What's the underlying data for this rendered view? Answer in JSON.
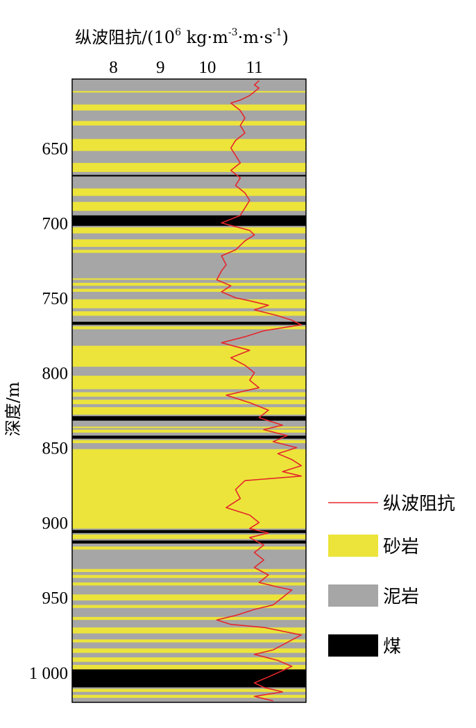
{
  "chart_data": {
    "type": "line",
    "title": "纵波阻抗/(10⁶ kg·m⁻³·m·s⁻¹)",
    "title_parts": {
      "main": "纵波阻抗/(10",
      "exp": "6",
      "units": " kg·m",
      "exp2": "-3",
      "units2": "·m·s",
      "exp3": "-1",
      "close": ")"
    },
    "ylabel": "深度/m",
    "x_ticks": [
      "8",
      "9",
      "10",
      "11"
    ],
    "x_tick_values": [
      8,
      9,
      10,
      11
    ],
    "y_ticks": [
      "650",
      "700",
      "750",
      "800",
      "850",
      "900",
      "950",
      "1 000"
    ],
    "y_tick_values": [
      650,
      700,
      750,
      800,
      850,
      900,
      950,
      1000
    ],
    "xlim": [
      7.12,
      12.1
    ],
    "ylim": [
      604,
      1020
    ],
    "y_inverted": true,
    "legend": {
      "position": "right",
      "items": [
        {
          "label": "纵波阻抗",
          "kind": "line",
          "color": "#e5262b"
        },
        {
          "label": "砂岩",
          "kind": "patch",
          "color": "#ece43a"
        },
        {
          "label": "泥岩",
          "kind": "patch",
          "color": "#a6a6a6"
        },
        {
          "label": "煤",
          "kind": "patch",
          "color": "#000000"
        }
      ]
    },
    "lithology_background": "泥岩",
    "lithology": [
      {
        "top": 612,
        "bottom": 613,
        "rock": "砂岩"
      },
      {
        "top": 621,
        "bottom": 625,
        "rock": "砂岩"
      },
      {
        "top": 632,
        "bottom": 635,
        "rock": "砂岩"
      },
      {
        "top": 644,
        "bottom": 652,
        "rock": "砂岩"
      },
      {
        "top": 660,
        "bottom": 666,
        "rock": "砂岩"
      },
      {
        "top": 668,
        "bottom": 669,
        "rock": "煤"
      },
      {
        "top": 677,
        "bottom": 682,
        "rock": "砂岩"
      },
      {
        "top": 686,
        "bottom": 692,
        "rock": "砂岩"
      },
      {
        "top": 695,
        "bottom": 702,
        "rock": "煤"
      },
      {
        "top": 703,
        "bottom": 707,
        "rock": "砂岩"
      },
      {
        "top": 711,
        "bottom": 716,
        "rock": "砂岩"
      },
      {
        "top": 718,
        "bottom": 720,
        "rock": "砂岩"
      },
      {
        "top": 737,
        "bottom": 738,
        "rock": "砂岩"
      },
      {
        "top": 740,
        "bottom": 742,
        "rock": "砂岩"
      },
      {
        "top": 744,
        "bottom": 746,
        "rock": "砂岩"
      },
      {
        "top": 751,
        "bottom": 757,
        "rock": "砂岩"
      },
      {
        "top": 759,
        "bottom": 762,
        "rock": "砂岩"
      },
      {
        "top": 766,
        "bottom": 768,
        "rock": "煤"
      },
      {
        "top": 769,
        "bottom": 771,
        "rock": "砂岩"
      },
      {
        "top": 782,
        "bottom": 796,
        "rock": "砂岩"
      },
      {
        "top": 802,
        "bottom": 811,
        "rock": "砂岩"
      },
      {
        "top": 813,
        "bottom": 816,
        "rock": "砂岩"
      },
      {
        "top": 818,
        "bottom": 821,
        "rock": "砂岩"
      },
      {
        "top": 823,
        "bottom": 828,
        "rock": "砂岩"
      },
      {
        "top": 829,
        "bottom": 832,
        "rock": "煤"
      },
      {
        "top": 836,
        "bottom": 837,
        "rock": "砂岩"
      },
      {
        "top": 838,
        "bottom": 840,
        "rock": "砂岩"
      },
      {
        "top": 842,
        "bottom": 844,
        "rock": "煤"
      },
      {
        "top": 845,
        "bottom": 847,
        "rock": "砂岩"
      },
      {
        "top": 851,
        "bottom": 904,
        "rock": "砂岩"
      },
      {
        "top": 905,
        "bottom": 907,
        "rock": "煤"
      },
      {
        "top": 908,
        "bottom": 911,
        "rock": "砂岩"
      },
      {
        "top": 912,
        "bottom": 914,
        "rock": "煤"
      },
      {
        "top": 916,
        "bottom": 918,
        "rock": "砂岩"
      },
      {
        "top": 931,
        "bottom": 933,
        "rock": "砂岩"
      },
      {
        "top": 935,
        "bottom": 937,
        "rock": "砂岩"
      },
      {
        "top": 940,
        "bottom": 942,
        "rock": "砂岩"
      },
      {
        "top": 948,
        "bottom": 952,
        "rock": "砂岩"
      },
      {
        "top": 955,
        "bottom": 957,
        "rock": "砂岩"
      },
      {
        "top": 963,
        "bottom": 965,
        "rock": "砂岩"
      },
      {
        "top": 970,
        "bottom": 974,
        "rock": "砂岩"
      },
      {
        "top": 978,
        "bottom": 980,
        "rock": "砂岩"
      },
      {
        "top": 984,
        "bottom": 987,
        "rock": "砂岩"
      },
      {
        "top": 990,
        "bottom": 993,
        "rock": "砂岩"
      },
      {
        "top": 995,
        "bottom": 998,
        "rock": "砂岩"
      },
      {
        "top": 998,
        "bottom": 1010,
        "rock": "煤"
      },
      {
        "top": 1011,
        "bottom": 1013,
        "rock": "砂岩"
      },
      {
        "top": 1015,
        "bottom": 1017,
        "rock": "砂岩"
      }
    ],
    "series": [
      {
        "name": "纵波阻抗",
        "color": "#e5262b",
        "points": [
          [
            11.1,
            605
          ],
          [
            11.0,
            608
          ],
          [
            11.1,
            610
          ],
          [
            10.9,
            615
          ],
          [
            10.7,
            618
          ],
          [
            10.5,
            620
          ],
          [
            10.7,
            625
          ],
          [
            10.8,
            630
          ],
          [
            10.7,
            635
          ],
          [
            10.8,
            640
          ],
          [
            10.6,
            645
          ],
          [
            10.5,
            650
          ],
          [
            10.6,
            655
          ],
          [
            10.7,
            660
          ],
          [
            10.5,
            665
          ],
          [
            10.7,
            670
          ],
          [
            10.6,
            675
          ],
          [
            10.8,
            680
          ],
          [
            10.9,
            685
          ],
          [
            10.8,
            690
          ],
          [
            10.7,
            695
          ],
          [
            10.3,
            700
          ],
          [
            10.9,
            705
          ],
          [
            11.0,
            708
          ],
          [
            10.8,
            712
          ],
          [
            10.6,
            718
          ],
          [
            10.3,
            722
          ],
          [
            10.4,
            728
          ],
          [
            10.3,
            732
          ],
          [
            10.2,
            738
          ],
          [
            10.5,
            742
          ],
          [
            10.3,
            746
          ],
          [
            10.6,
            750
          ],
          [
            10.9,
            752
          ],
          [
            11.3,
            755
          ],
          [
            11.0,
            758
          ],
          [
            11.5,
            762
          ],
          [
            11.8,
            765
          ],
          [
            12.0,
            768
          ],
          [
            11.2,
            772
          ],
          [
            10.8,
            776
          ],
          [
            10.3,
            780
          ],
          [
            10.9,
            785
          ],
          [
            10.5,
            790
          ],
          [
            10.8,
            795
          ],
          [
            11.0,
            800
          ],
          [
            10.9,
            805
          ],
          [
            11.1,
            810
          ],
          [
            10.4,
            815
          ],
          [
            10.9,
            820
          ],
          [
            11.3,
            825
          ],
          [
            11.1,
            830
          ],
          [
            11.6,
            835
          ],
          [
            11.2,
            838
          ],
          [
            11.7,
            842
          ],
          [
            11.4,
            846
          ],
          [
            11.9,
            850
          ],
          [
            11.5,
            854
          ],
          [
            11.8,
            858
          ],
          [
            12.0,
            862
          ],
          [
            11.6,
            866
          ],
          [
            12.0,
            869
          ],
          [
            10.8,
            872
          ],
          [
            10.6,
            878
          ],
          [
            10.7,
            884
          ],
          [
            10.4,
            890
          ],
          [
            10.9,
            895
          ],
          [
            11.1,
            900
          ],
          [
            10.9,
            904
          ],
          [
            11.3,
            907
          ],
          [
            10.9,
            910
          ],
          [
            11.2,
            915
          ],
          [
            11.0,
            920
          ],
          [
            11.2,
            925
          ],
          [
            11.0,
            930
          ],
          [
            11.3,
            935
          ],
          [
            11.1,
            940
          ],
          [
            11.5,
            943
          ],
          [
            11.8,
            945
          ],
          [
            11.6,
            950
          ],
          [
            11.4,
            955
          ],
          [
            11.0,
            958
          ],
          [
            10.6,
            962
          ],
          [
            10.2,
            965
          ],
          [
            10.5,
            968
          ],
          [
            11.2,
            970
          ],
          [
            12.0,
            975
          ],
          [
            11.7,
            980
          ],
          [
            11.4,
            985
          ],
          [
            11.0,
            988
          ],
          [
            11.5,
            992
          ],
          [
            11.8,
            996
          ],
          [
            11.3,
            1003
          ],
          [
            11.0,
            1007
          ],
          [
            11.2,
            1010
          ],
          [
            11.6,
            1013
          ],
          [
            11.0,
            1016
          ],
          [
            11.4,
            1019
          ]
        ]
      }
    ]
  }
}
